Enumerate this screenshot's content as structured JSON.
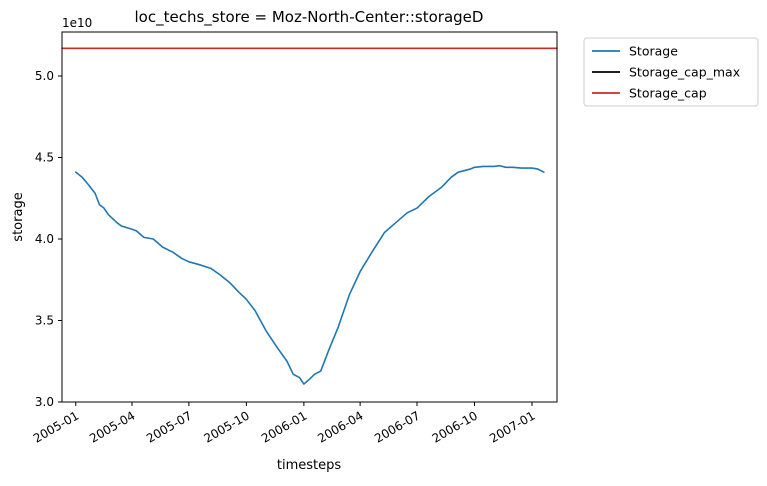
{
  "chart_data": {
    "type": "line",
    "title": "loc_techs_store = Moz-North-Center::storageD",
    "xlabel": "timesteps",
    "ylabel": "storage",
    "y_offset_label": "1e10",
    "ylim": [
      3.0,
      5.27
    ],
    "xlim": [
      "2004-12-10",
      "2007-02-10"
    ],
    "legend_position": "outside-top-right",
    "x_ticks": [
      {
        "date": "2005-01-01",
        "label": "2005-01"
      },
      {
        "date": "2005-04-01",
        "label": "2005-04"
      },
      {
        "date": "2005-07-01",
        "label": "2005-07"
      },
      {
        "date": "2005-10-01",
        "label": "2005-10"
      },
      {
        "date": "2006-01-01",
        "label": "2006-01"
      },
      {
        "date": "2006-04-01",
        "label": "2006-04"
      },
      {
        "date": "2006-07-01",
        "label": "2006-07"
      },
      {
        "date": "2006-10-01",
        "label": "2006-10"
      },
      {
        "date": "2007-01-01",
        "label": "2007-01"
      }
    ],
    "y_ticks": [
      {
        "value": 3.0,
        "label": "3.0"
      },
      {
        "value": 3.5,
        "label": "3.5"
      },
      {
        "value": 4.0,
        "label": "4.0"
      },
      {
        "value": 4.5,
        "label": "4.5"
      },
      {
        "value": 5.0,
        "label": "5.0"
      }
    ],
    "series": [
      {
        "name": "Storage",
        "color": "#1f77b4",
        "points": [
          [
            "2005-01-01",
            4.41
          ],
          [
            "2005-01-11",
            4.38
          ],
          [
            "2005-01-22",
            4.33
          ],
          [
            "2005-02-01",
            4.28
          ],
          [
            "2005-02-08",
            4.21
          ],
          [
            "2005-02-15",
            4.19
          ],
          [
            "2005-02-22",
            4.15
          ],
          [
            "2005-03-08",
            4.1
          ],
          [
            "2005-03-15",
            4.08
          ],
          [
            "2005-04-01",
            4.06
          ],
          [
            "2005-04-08",
            4.05
          ],
          [
            "2005-04-20",
            4.01
          ],
          [
            "2005-05-05",
            4.0
          ],
          [
            "2005-05-20",
            3.95
          ],
          [
            "2005-06-05",
            3.92
          ],
          [
            "2005-06-20",
            3.88
          ],
          [
            "2005-07-01",
            3.86
          ],
          [
            "2005-07-20",
            3.84
          ],
          [
            "2005-08-05",
            3.82
          ],
          [
            "2005-08-20",
            3.78
          ],
          [
            "2005-09-05",
            3.73
          ],
          [
            "2005-09-20",
            3.67
          ],
          [
            "2005-10-01",
            3.63
          ],
          [
            "2005-10-15",
            3.56
          ],
          [
            "2005-11-01",
            3.44
          ],
          [
            "2005-11-20",
            3.33
          ],
          [
            "2005-12-05",
            3.25
          ],
          [
            "2005-12-15",
            3.17
          ],
          [
            "2005-12-25",
            3.15
          ],
          [
            "2006-01-01",
            3.11
          ],
          [
            "2006-01-10",
            3.14
          ],
          [
            "2006-01-18",
            3.17
          ],
          [
            "2006-01-28",
            3.19
          ],
          [
            "2006-02-10",
            3.32
          ],
          [
            "2006-02-25",
            3.46
          ],
          [
            "2006-03-15",
            3.66
          ],
          [
            "2006-04-01",
            3.8
          ],
          [
            "2006-04-20",
            3.92
          ],
          [
            "2006-05-10",
            4.04
          ],
          [
            "2006-05-25",
            4.09
          ],
          [
            "2006-06-15",
            4.16
          ],
          [
            "2006-07-01",
            4.19
          ],
          [
            "2006-07-20",
            4.26
          ],
          [
            "2006-08-10",
            4.32
          ],
          [
            "2006-08-25",
            4.38
          ],
          [
            "2006-09-05",
            4.41
          ],
          [
            "2006-09-25",
            4.43
          ],
          [
            "2006-10-01",
            4.44
          ],
          [
            "2006-10-15",
            4.445
          ],
          [
            "2006-11-01",
            4.445
          ],
          [
            "2006-11-10",
            4.45
          ],
          [
            "2006-11-20",
            4.44
          ],
          [
            "2006-12-01",
            4.44
          ],
          [
            "2006-12-15",
            4.435
          ],
          [
            "2007-01-01",
            4.435
          ],
          [
            "2007-01-10",
            4.43
          ],
          [
            "2007-01-20",
            4.41
          ]
        ]
      },
      {
        "name": "Storage_cap_max",
        "color": "#000000",
        "points": []
      },
      {
        "name": "Storage_cap",
        "color": "#d62728",
        "points": [
          [
            "2004-12-10",
            5.17
          ],
          [
            "2007-02-10",
            5.17
          ]
        ]
      }
    ]
  }
}
